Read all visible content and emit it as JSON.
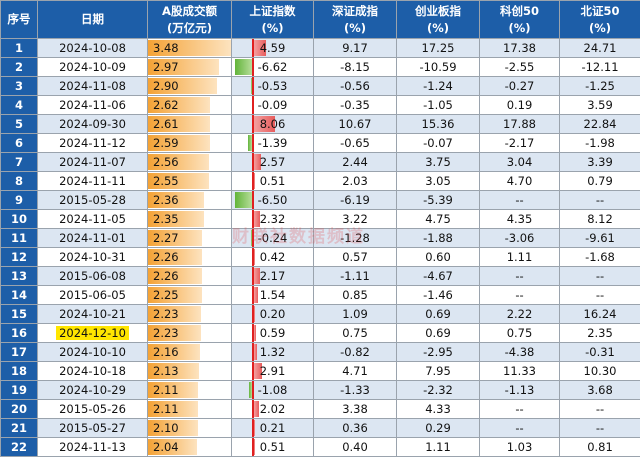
{
  "headers": {
    "idx": "序号",
    "date": "日期",
    "volume": [
      "A股成交额",
      "(万亿元)"
    ],
    "sh": [
      "上证指数",
      "(%)"
    ],
    "sz": [
      "深证成指",
      "(%)"
    ],
    "cy": [
      "创业板指",
      "(%)"
    ],
    "kc": [
      "科创50",
      "(%)"
    ],
    "bz": [
      "北证50",
      "(%)"
    ]
  },
  "watermark": "财联社数据频道",
  "highlight_color": "#ffe600",
  "colors": {
    "header": "#1d5ea8",
    "volume_bar": "#f4a235",
    "up_bar": "#e85c5c",
    "down_bar": "#62b43a"
  },
  "rows": [
    {
      "idx": "1",
      "date": "2024-10-08",
      "vol": "3.48",
      "sh": "4.59",
      "sz": "9.17",
      "cy": "17.25",
      "kc": "17.38",
      "bz": "24.71"
    },
    {
      "idx": "2",
      "date": "2024-10-09",
      "vol": "2.97",
      "sh": "-6.62",
      "sz": "-8.15",
      "cy": "-10.59",
      "kc": "-2.55",
      "bz": "-12.11"
    },
    {
      "idx": "3",
      "date": "2024-11-08",
      "vol": "2.90",
      "sh": "-0.53",
      "sz": "-0.56",
      "cy": "-1.24",
      "kc": "-0.27",
      "bz": "-1.25"
    },
    {
      "idx": "4",
      "date": "2024-11-06",
      "vol": "2.62",
      "sh": "-0.09",
      "sz": "-0.35",
      "cy": "-1.05",
      "kc": "0.19",
      "bz": "3.59"
    },
    {
      "idx": "5",
      "date": "2024-09-30",
      "vol": "2.61",
      "sh": "8.06",
      "sz": "10.67",
      "cy": "15.36",
      "kc": "17.88",
      "bz": "22.84"
    },
    {
      "idx": "6",
      "date": "2024-11-12",
      "vol": "2.59",
      "sh": "-1.39",
      "sz": "-0.65",
      "cy": "-0.07",
      "kc": "-2.17",
      "bz": "-1.98"
    },
    {
      "idx": "7",
      "date": "2024-11-07",
      "vol": "2.56",
      "sh": "2.57",
      "sz": "2.44",
      "cy": "3.75",
      "kc": "3.04",
      "bz": "3.39"
    },
    {
      "idx": "8",
      "date": "2024-11-11",
      "vol": "2.55",
      "sh": "0.51",
      "sz": "2.03",
      "cy": "3.05",
      "kc": "4.70",
      "bz": "0.79"
    },
    {
      "idx": "9",
      "date": "2015-05-28",
      "vol": "2.36",
      "sh": "-6.50",
      "sz": "-6.19",
      "cy": "-5.39",
      "kc": "--",
      "bz": "--"
    },
    {
      "idx": "10",
      "date": "2024-11-05",
      "vol": "2.35",
      "sh": "2.32",
      "sz": "3.22",
      "cy": "4.75",
      "kc": "4.35",
      "bz": "8.12"
    },
    {
      "idx": "11",
      "date": "2024-11-01",
      "vol": "2.27",
      "sh": "-0.24",
      "sz": "-1.28",
      "cy": "-1.88",
      "kc": "-3.06",
      "bz": "-9.61"
    },
    {
      "idx": "12",
      "date": "2024-10-31",
      "vol": "2.26",
      "sh": "0.42",
      "sz": "0.57",
      "cy": "0.60",
      "kc": "1.11",
      "bz": "-1.68"
    },
    {
      "idx": "13",
      "date": "2015-06-08",
      "vol": "2.26",
      "sh": "2.17",
      "sz": "-1.11",
      "cy": "-4.67",
      "kc": "--",
      "bz": "--"
    },
    {
      "idx": "14",
      "date": "2015-06-05",
      "vol": "2.25",
      "sh": "1.54",
      "sz": "0.85",
      "cy": "-1.46",
      "kc": "--",
      "bz": "--"
    },
    {
      "idx": "15",
      "date": "2024-10-21",
      "vol": "2.23",
      "sh": "0.20",
      "sz": "1.09",
      "cy": "0.69",
      "kc": "2.22",
      "bz": "16.24"
    },
    {
      "idx": "16",
      "date": "2024-12-10",
      "vol": "2.23",
      "sh": "0.59",
      "sz": "0.75",
      "cy": "0.69",
      "kc": "0.75",
      "bz": "2.35",
      "hl": true
    },
    {
      "idx": "17",
      "date": "2024-10-10",
      "vol": "2.16",
      "sh": "1.32",
      "sz": "-0.82",
      "cy": "-2.95",
      "kc": "-4.38",
      "bz": "-0.31"
    },
    {
      "idx": "18",
      "date": "2024-10-18",
      "vol": "2.13",
      "sh": "2.91",
      "sz": "4.71",
      "cy": "7.95",
      "kc": "11.33",
      "bz": "10.30"
    },
    {
      "idx": "19",
      "date": "2024-10-29",
      "vol": "2.11",
      "sh": "-1.08",
      "sz": "-1.33",
      "cy": "-2.32",
      "kc": "-1.13",
      "bz": "3.68"
    },
    {
      "idx": "20",
      "date": "2015-05-26",
      "vol": "2.11",
      "sh": "2.02",
      "sz": "3.38",
      "cy": "4.33",
      "kc": "--",
      "bz": "--"
    },
    {
      "idx": "21",
      "date": "2015-05-27",
      "vol": "2.10",
      "sh": "0.21",
      "sz": "0.36",
      "cy": "0.29",
      "kc": "--",
      "bz": "--"
    },
    {
      "idx": "22",
      "date": "2024-11-13",
      "vol": "2.04",
      "sh": "0.51",
      "sz": "0.40",
      "cy": "1.11",
      "kc": "1.03",
      "bz": "0.81"
    }
  ]
}
